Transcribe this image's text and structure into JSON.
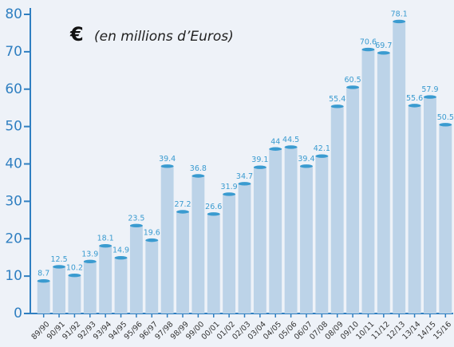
{
  "chart_data": {
    "type": "bar",
    "currency_symbol": "€",
    "annotation": "(en millions d’Euros)",
    "categories": [
      "89/90",
      "90/91",
      "91/92",
      "92/93",
      "93/94",
      "94/95",
      "95/96",
      "96/97",
      "97/98",
      "98/99",
      "99/00",
      "00/01",
      "01/02",
      "02/03",
      "03/04",
      "04/05",
      "05/06",
      "06/07",
      "07/08",
      "08/09",
      "09/10",
      "10/11",
      "11/12",
      "12/13",
      "13/14",
      "14/15",
      "15/16"
    ],
    "values": [
      8.7,
      12.5,
      10.2,
      13.9,
      18.1,
      14.9,
      23.5,
      19.6,
      39.4,
      27.2,
      36.8,
      26.6,
      31.9,
      34.7,
      39.1,
      44,
      44.5,
      39.4,
      42.1,
      55.4,
      60.5,
      70.6,
      69.7,
      78.1,
      55.6,
      57.9,
      50.5
    ],
    "color": "#bcd3e8",
    "cap_color": "#3a9bd0",
    "ylim": [
      0,
      80
    ],
    "yticks": [
      0,
      10,
      20,
      30,
      40,
      50,
      60,
      70,
      80
    ],
    "grid": false
  }
}
